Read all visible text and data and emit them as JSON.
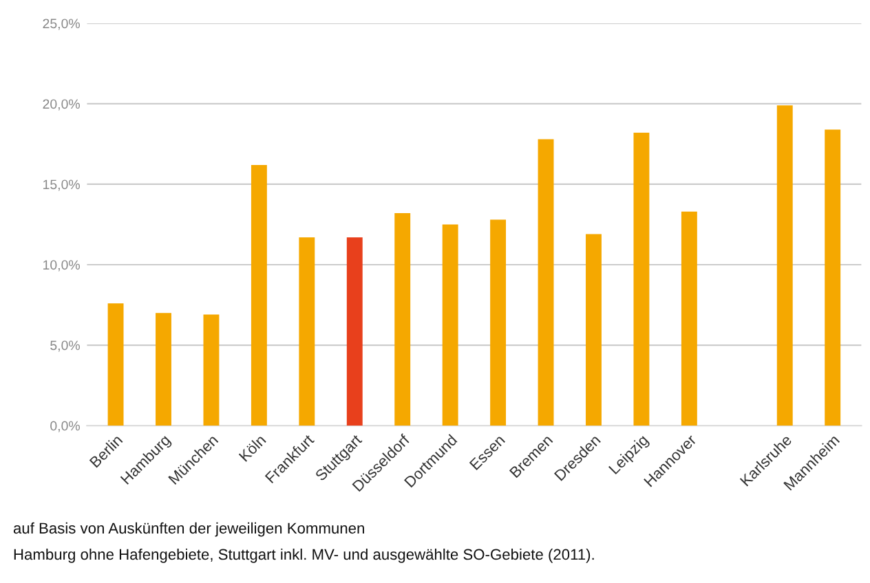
{
  "chart_data": {
    "type": "bar",
    "categories": [
      "Berlin",
      "Hamburg",
      "München",
      "Köln",
      "Frankfurt",
      "Stuttgart",
      "Düsseldorf",
      "Dortmund",
      "Essen",
      "Bremen",
      "Dresden",
      "Leipzig",
      "Hannover",
      null,
      "Karlsruhe",
      "Mannheim"
    ],
    "values": [
      7.6,
      7.0,
      6.9,
      16.2,
      11.7,
      11.7,
      13.2,
      12.5,
      12.8,
      17.8,
      11.9,
      18.2,
      13.3,
      null,
      19.9,
      18.4
    ],
    "colors": [
      "#f5a800",
      "#f5a800",
      "#f5a800",
      "#f5a800",
      "#f5a800",
      "#e8401c",
      "#f5a800",
      "#f5a800",
      "#f5a800",
      "#f5a800",
      "#f5a800",
      "#f5a800",
      "#f5a800",
      "#f5a800",
      "#f5a800",
      "#f5a800"
    ],
    "ylim": [
      0,
      25
    ],
    "yticks": [
      {
        "value": 0,
        "label": "0,0%"
      },
      {
        "value": 5,
        "label": "5,0%"
      },
      {
        "value": 10,
        "label": "10,0%"
      },
      {
        "value": 15,
        "label": "15,0%"
      },
      {
        "value": 20,
        "label": "20,0%"
      },
      {
        "value": 25,
        "label": "25,0%"
      }
    ],
    "grid": "y",
    "annotations": [
      "auf Basis von Auskünften der jeweiligen Kommunen",
      "Hamburg ohne Hafengebiete, Stuttgart inkl. MV- und ausgewählte SO-Gebiete (2011)."
    ]
  }
}
